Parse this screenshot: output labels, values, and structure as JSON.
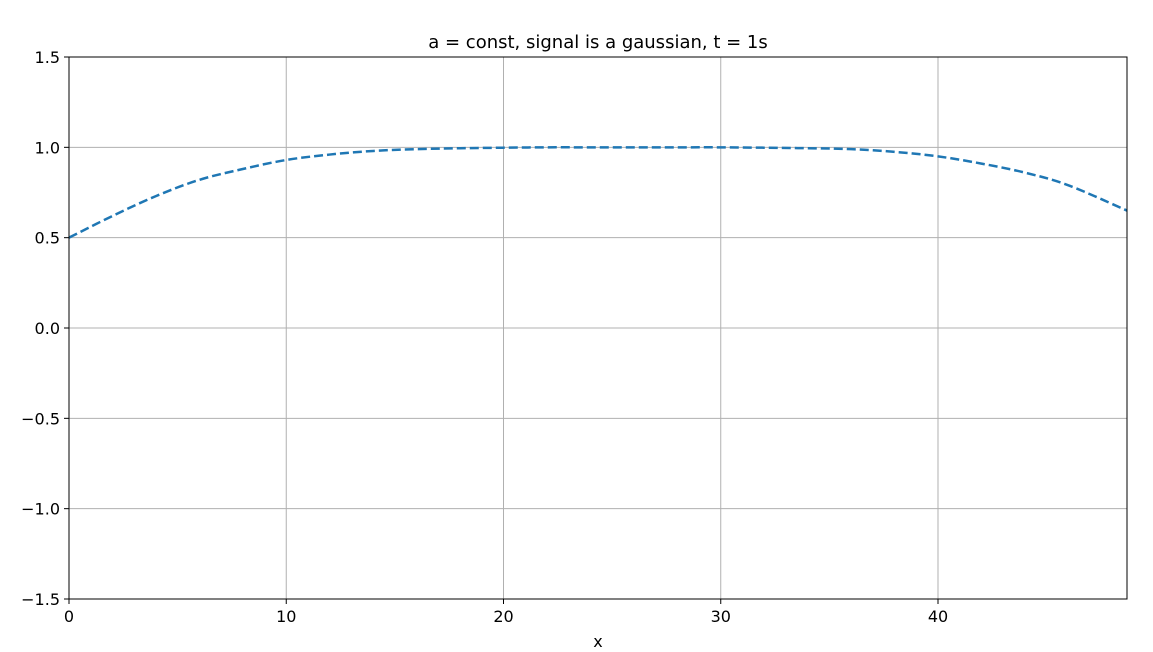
{
  "chart_data": {
    "type": "line",
    "title": "a = const, signal is a gaussian, t = 1s",
    "xlabel": "x",
    "ylabel": "",
    "xlim": [
      0,
      48.7
    ],
    "ylim": [
      -1.5,
      1.5
    ],
    "x_ticks": [
      0,
      10,
      20,
      30,
      40
    ],
    "x_tick_labels": [
      "0",
      "10",
      "20",
      "30",
      "40"
    ],
    "y_ticks": [
      -1.5,
      -1.0,
      -0.5,
      0.0,
      0.5,
      1.0,
      1.5
    ],
    "y_tick_labels": [
      "−1.5",
      "−1.0",
      "−0.5",
      "0.0",
      "0.5",
      "1.0",
      "1.5"
    ],
    "grid": true,
    "series": [
      {
        "color": "#1f77b4",
        "linestyle": "dashed",
        "x": [
          0,
          2,
          4,
          6,
          8,
          10,
          12,
          14,
          16,
          18,
          20,
          22,
          24,
          26,
          28,
          30,
          32,
          34,
          36,
          38,
          40,
          42,
          44,
          46,
          48.7
        ],
        "y": [
          0.5,
          0.62,
          0.73,
          0.82,
          0.88,
          0.93,
          0.96,
          0.98,
          0.99,
          0.995,
          0.998,
          1.0,
          1.0,
          1.0,
          1.0,
          1.0,
          0.998,
          0.995,
          0.99,
          0.975,
          0.95,
          0.91,
          0.86,
          0.79,
          0.65
        ]
      }
    ]
  }
}
